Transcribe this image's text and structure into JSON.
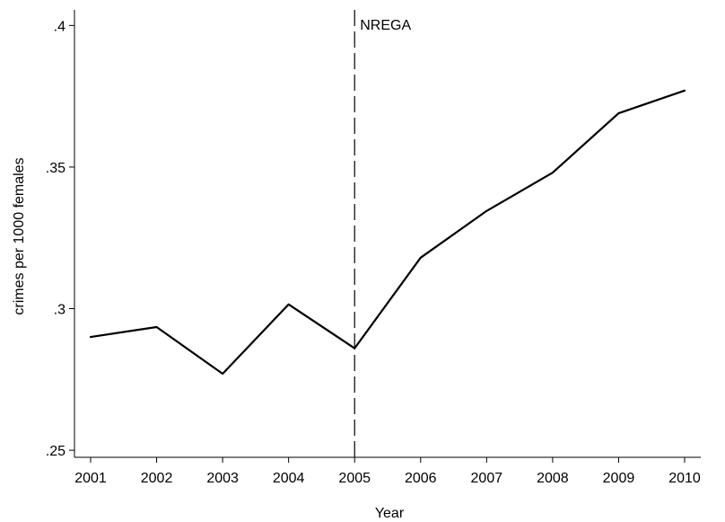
{
  "chart_data": {
    "type": "line",
    "title": "",
    "xlabel": "Year",
    "ylabel": "crimes per 1000 females",
    "x": [
      2001,
      2002,
      2003,
      2004,
      2005,
      2006,
      2007,
      2008,
      2009,
      2010
    ],
    "series": [
      {
        "values": [
          0.29,
          0.2935,
          0.277,
          0.3015,
          0.286,
          0.318,
          0.3345,
          0.348,
          0.369,
          0.377
        ],
        "color": "#000000"
      }
    ],
    "x_ticks": [
      "2001",
      "2002",
      "2003",
      "2004",
      "2005",
      "2006",
      "2007",
      "2008",
      "2009",
      "2010"
    ],
    "y_ticks": [
      0.25,
      0.3,
      0.35,
      0.4
    ],
    "y_tick_labels": [
      ".25",
      ".3",
      ".35",
      ".4"
    ],
    "xlim": [
      2001,
      2010
    ],
    "ylim": [
      0.2475,
      0.4055
    ],
    "grid": false,
    "legend": "none",
    "annotation": {
      "label": "NREGA",
      "x": 2005,
      "line_style": "dashed"
    }
  }
}
